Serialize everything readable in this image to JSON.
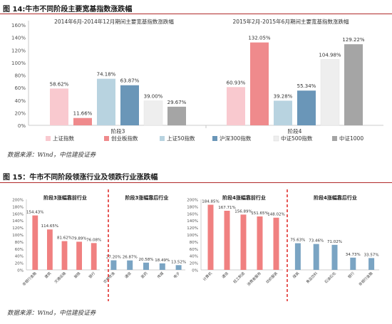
{
  "fig14": {
    "title": "图 14:牛市不同阶段主要宽基指数涨跌幅",
    "source": "数据来源：Wind，中信建投证券"
  },
  "fig15": {
    "title": "图 15：牛市不同阶段领涨行业及领跌行业涨跌幅",
    "source": "数据来源：Wind，中信建投证券"
  },
  "colors": {
    "上证指数": "#f9c9cf",
    "创业板指数": "#ef8a8c",
    "上证50指数": "#b8d3e0",
    "沪深300指数": "#6a96b8",
    "中证500指数": "#eeeeee",
    "中证1000": "#a5a5a5",
    "industry_up": "#f08080",
    "industry_down": "#7aa4c3",
    "divider": "#e0302e"
  },
  "chart_data": [
    {
      "type": "bar",
      "ylim": [
        0,
        160
      ],
      "yticks": [
        "0%",
        "20%",
        "40%",
        "60%",
        "80%",
        "100%",
        "120%",
        "140%",
        "160%"
      ],
      "grid": false,
      "legend": "bottom",
      "categories": [
        "阶段3",
        "阶段4"
      ],
      "panel_titles": [
        "2014年6月-2014年12月期间主要宽基指数涨跌幅",
        "2015年2月-2015年6月期间主要宽基指数涨跌幅"
      ],
      "series": [
        {
          "name": "上证指数",
          "values": [
            58.62,
            60.93
          ],
          "labels": [
            "58.62%",
            "60.93%"
          ]
        },
        {
          "name": "创业板指数",
          "values": [
            11.66,
            132.05
          ],
          "labels": [
            "11.66%",
            "132.05%"
          ]
        },
        {
          "name": "上证50指数",
          "values": [
            74.18,
            39.28
          ],
          "labels": [
            "74.18%",
            "39.28%"
          ]
        },
        {
          "name": "沪深300指数",
          "values": [
            63.87,
            55.34
          ],
          "labels": [
            "63.87%",
            "55.34%"
          ]
        },
        {
          "name": "中证500指数",
          "values": [
            39.0,
            104.98
          ],
          "labels": [
            "39.00%",
            "104.98%"
          ]
        },
        {
          "name": "中证1000",
          "values": [
            29.67,
            129.22
          ],
          "labels": [
            "29.67%",
            "129.22%"
          ]
        }
      ]
    },
    {
      "type": "bar",
      "ylim": [
        0,
        200
      ],
      "yticks": [
        "0%",
        "20%",
        "40%",
        "60%",
        "80%",
        "100%",
        "120%",
        "140%",
        "160%",
        "180%",
        "200%"
      ],
      "panels": [
        {
          "title": "阶段3涨幅靠前行业",
          "categories": [
            "非银行金融",
            "建筑",
            "交通运输",
            "钢铁",
            "银行"
          ],
          "values": [
            154.43,
            114.65,
            81.62,
            79.89,
            76.08
          ],
          "labels": [
            "154.43%",
            "114.65%",
            "81.62%",
            "79.89%",
            "76.08%"
          ],
          "color": "up"
        },
        {
          "title": "阶段3涨幅靠后行业",
          "categories": [
            "农林牧渔",
            "通信",
            "医药",
            "传媒",
            "电子"
          ],
          "values": [
            27.2,
            26.87,
            20.58,
            18.49,
            13.52
          ],
          "labels": [
            "27.20%",
            "26.87%",
            "20.58%",
            "18.49%",
            "13.52%"
          ],
          "color": "down"
        },
        {
          "title": "阶段4涨幅靠前行业",
          "categories": [
            "计算机",
            "通信",
            "轻工制造",
            "消费者服务",
            "纺织服装"
          ],
          "values": [
            184.85,
            167.71,
            156.89,
            151.65,
            148.02
          ],
          "labels": [
            "184.85%",
            "167.71%",
            "156.89%",
            "151.65%",
            "148.02%"
          ],
          "color": "up"
        },
        {
          "title": "阶段4涨幅靠后行业",
          "categories": [
            "煤炭",
            "食品饮料",
            "石油石化",
            "银行",
            "非银行金融"
          ],
          "values": [
            75.63,
            73.46,
            71.02,
            34.73,
            33.57
          ],
          "labels": [
            "75.63%",
            "73.46%",
            "71.02%",
            "34.73%",
            "33.57%"
          ],
          "color": "down"
        }
      ]
    }
  ]
}
